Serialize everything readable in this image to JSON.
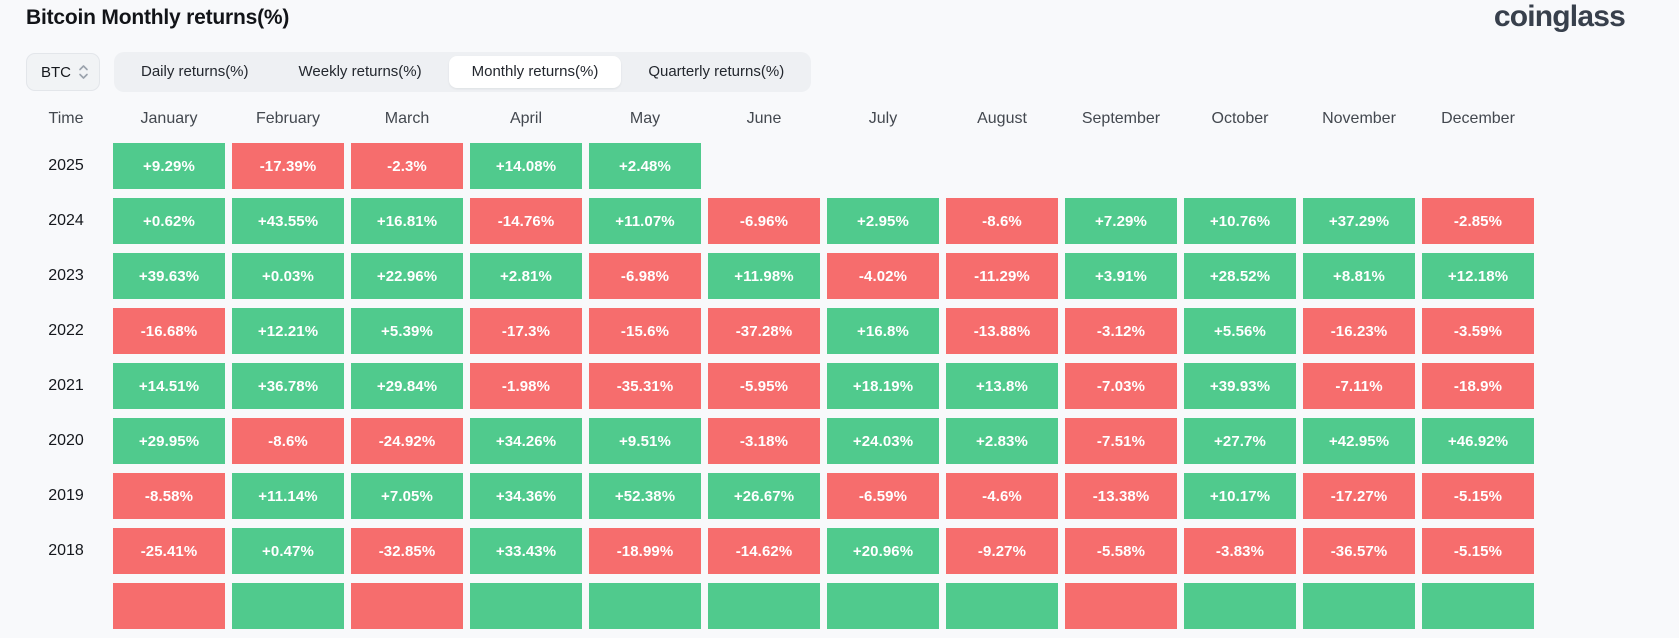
{
  "page": {
    "title": "Bitcoin Monthly returns(%)",
    "logo_text": "coinglass"
  },
  "controls": {
    "symbol_select": {
      "value": "BTC"
    },
    "tabs": [
      {
        "label": "Daily returns(%)",
        "active": false
      },
      {
        "label": "Weekly returns(%)",
        "active": false
      },
      {
        "label": "Monthly returns(%)",
        "active": true
      },
      {
        "label": "Quarterly returns(%)",
        "active": false
      }
    ]
  },
  "colors": {
    "positive": "#50ca8d",
    "negative": "#f66d6d",
    "page_background": "#f8f9fb",
    "tab_bar_background": "#eef0f3",
    "active_tab_background": "#ffffff"
  },
  "chart_data": {
    "type": "heatmap",
    "title": "Bitcoin Monthly returns(%)",
    "legend_position": "none",
    "columns": [
      "Time",
      "January",
      "February",
      "March",
      "April",
      "May",
      "June",
      "July",
      "August",
      "September",
      "October",
      "November",
      "December"
    ],
    "rows": [
      {
        "year": "2025",
        "values": [
          "+9.29%",
          "-17.39%",
          "-2.3%",
          "+14.08%",
          "+2.48%",
          "",
          "",
          "",
          "",
          "",
          "",
          ""
        ]
      },
      {
        "year": "2024",
        "values": [
          "+0.62%",
          "+43.55%",
          "+16.81%",
          "-14.76%",
          "+11.07%",
          "-6.96%",
          "+2.95%",
          "-8.6%",
          "+7.29%",
          "+10.76%",
          "+37.29%",
          "-2.85%"
        ]
      },
      {
        "year": "2023",
        "values": [
          "+39.63%",
          "+0.03%",
          "+22.96%",
          "+2.81%",
          "-6.98%",
          "+11.98%",
          "-4.02%",
          "-11.29%",
          "+3.91%",
          "+28.52%",
          "+8.81%",
          "+12.18%"
        ]
      },
      {
        "year": "2022",
        "values": [
          "-16.68%",
          "+12.21%",
          "+5.39%",
          "-17.3%",
          "-15.6%",
          "-37.28%",
          "+16.8%",
          "-13.88%",
          "-3.12%",
          "+5.56%",
          "-16.23%",
          "-3.59%"
        ]
      },
      {
        "year": "2021",
        "values": [
          "+14.51%",
          "+36.78%",
          "+29.84%",
          "-1.98%",
          "-35.31%",
          "-5.95%",
          "+18.19%",
          "+13.8%",
          "-7.03%",
          "+39.93%",
          "-7.11%",
          "-18.9%"
        ]
      },
      {
        "year": "2020",
        "values": [
          "+29.95%",
          "-8.6%",
          "-24.92%",
          "+34.26%",
          "+9.51%",
          "-3.18%",
          "+24.03%",
          "+2.83%",
          "-7.51%",
          "+27.7%",
          "+42.95%",
          "+46.92%"
        ]
      },
      {
        "year": "2019",
        "values": [
          "-8.58%",
          "+11.14%",
          "+7.05%",
          "+34.36%",
          "+52.38%",
          "+26.67%",
          "-6.59%",
          "-4.6%",
          "-13.38%",
          "+10.17%",
          "-17.27%",
          "-5.15%"
        ]
      },
      {
        "year": "2018",
        "values": [
          "-25.41%",
          "+0.47%",
          "-32.85%",
          "+33.43%",
          "-18.99%",
          "-14.62%",
          "+20.96%",
          "-9.27%",
          "-5.58%",
          "-3.83%",
          "-36.57%",
          "-5.15%"
        ]
      }
    ],
    "partial_bottom_row_colors": [
      "negative",
      "positive",
      "negative",
      "positive",
      "positive",
      "positive",
      "positive",
      "positive",
      "negative",
      "positive",
      "positive",
      "positive"
    ]
  }
}
